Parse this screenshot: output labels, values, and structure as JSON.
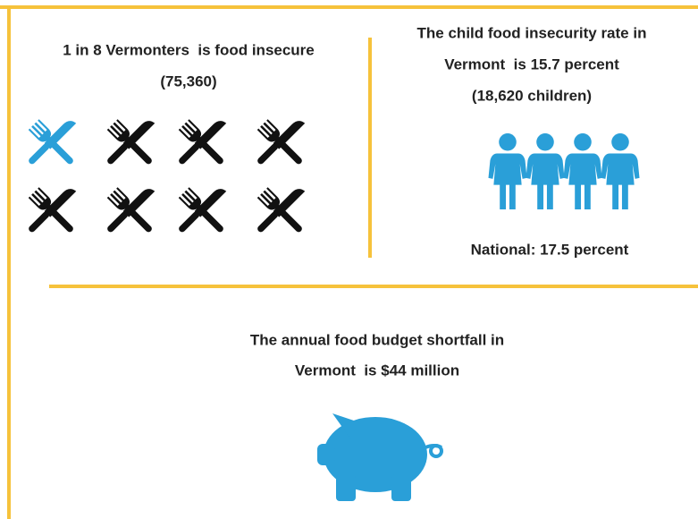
{
  "left": {
    "title": "1 in 8 Vermonters  is food insecure",
    "count": "(75,360)"
  },
  "right": {
    "lines": [
      "The child food insecurity rate in",
      "Vermont  is 15.7 percent",
      "(18,620 children)"
    ],
    "national": "National: 17.5 percent"
  },
  "bottom": {
    "lines": [
      "The annual food budget shortfall in",
      "Vermont  is $44 million"
    ]
  }
}
